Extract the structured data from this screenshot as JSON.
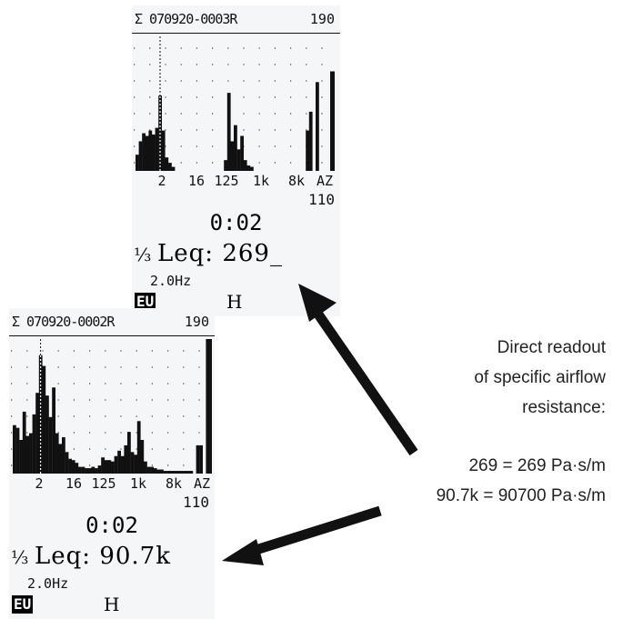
{
  "screen_a": {
    "id": "Σ 070920-0003R",
    "range": "190",
    "ticks": [
      "2",
      "16",
      "125",
      "1k",
      "8k",
      "AZ"
    ],
    "value_110": "110",
    "time": "0:02",
    "third": "⅓",
    "leq": "Leq: 269_",
    "hz": "2.0Hz",
    "eu": "EU",
    "h": "H"
  },
  "screen_b": {
    "id": "Σ 070920-0002R",
    "range": "190",
    "ticks": [
      "2",
      "16",
      "125",
      "1k",
      "8k",
      "AZ"
    ],
    "value_110": "110",
    "time": "0:02",
    "third": "⅓",
    "leq": "Leq: 90.7k",
    "hz": "2.0Hz",
    "eu": "EU",
    "h": "H"
  },
  "annotation": {
    "line1": "Direct readout",
    "line2": "of specific airflow",
    "line3": "resistance:",
    "eq1": "269 = 269 Pa·s/m",
    "eq2": "90.7k = 90700 Pa·s/m"
  },
  "colors": {
    "screen_bg": "#f5f6f8",
    "ink": "#111111",
    "arrow": "#111111"
  },
  "chart_data": [
    {
      "type": "bar",
      "name_ref": "screen_a",
      "ylim": [
        0,
        100
      ],
      "values": [
        12,
        22,
        28,
        26,
        30,
        27,
        32,
        56,
        30,
        10,
        6,
        3,
        0,
        0,
        0,
        0,
        0,
        0,
        0,
        0,
        0,
        0,
        0,
        0,
        0,
        0,
        0,
        8,
        58,
        22,
        34,
        16,
        26,
        8,
        4,
        3,
        0,
        0,
        0,
        0,
        0,
        0,
        0,
        0,
        0,
        0,
        0,
        0,
        0,
        0,
        0,
        0,
        30,
        44,
        0,
        66
      ],
      "az_value": 74,
      "cursor_index": 7
    },
    {
      "type": "bar",
      "name_ref": "screen_b",
      "ylim": [
        0,
        100
      ],
      "values": [
        36,
        34,
        25,
        46,
        28,
        30,
        44,
        60,
        88,
        80,
        58,
        42,
        64,
        30,
        22,
        27,
        16,
        11,
        10,
        8,
        5,
        5,
        4,
        4,
        5,
        4,
        6,
        12,
        10,
        10,
        9,
        13,
        17,
        13,
        21,
        31,
        16,
        14,
        39,
        25,
        9,
        5,
        5,
        4,
        3,
        3,
        2,
        2,
        2,
        2,
        2,
        2,
        2,
        2,
        2,
        0,
        21,
        21,
        0,
        100
      ],
      "az_value": 100,
      "cursor_index": 8
    }
  ]
}
